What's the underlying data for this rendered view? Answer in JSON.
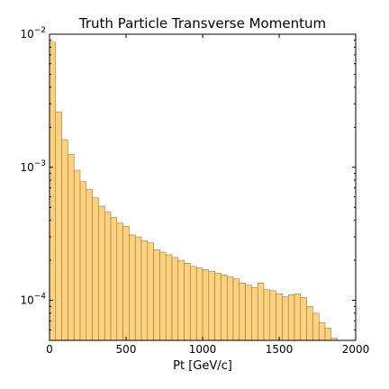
{
  "chart_data": {
    "type": "bar",
    "title": "Truth Particle Transverse Momentum",
    "xlabel": "Pt [GeV/c]",
    "ylabel": "",
    "xlim": [
      0,
      2000
    ],
    "ylim": [
      5e-05,
      0.01
    ],
    "yscale": "log",
    "bar_color": "#fdd17f",
    "edge_color": "#8a6a2a",
    "bin_width": 40,
    "x_ticks": [
      {
        "value": 0,
        "label": "0"
      },
      {
        "value": 500,
        "label": "500"
      },
      {
        "value": 1000,
        "label": "1000"
      },
      {
        "value": 1500,
        "label": "1500"
      },
      {
        "value": 2000,
        "label": "2000"
      }
    ],
    "y_ticks": [
      {
        "value": 0.0001,
        "base": "10",
        "exp": "−4"
      },
      {
        "value": 0.001,
        "base": "10",
        "exp": "−3"
      },
      {
        "value": 0.01,
        "base": "10",
        "exp": "−2"
      }
    ],
    "bin_edges_start": [
      0,
      40,
      80,
      120,
      160,
      200,
      240,
      280,
      320,
      360,
      400,
      440,
      480,
      520,
      560,
      600,
      640,
      680,
      720,
      760,
      800,
      840,
      880,
      920,
      960,
      1000,
      1040,
      1080,
      1120,
      1160,
      1200,
      1240,
      1280,
      1320,
      1360,
      1400,
      1440,
      1480,
      1520,
      1560,
      1600,
      1640,
      1680,
      1720,
      1760,
      1800,
      1840
    ],
    "values": [
      0.0087,
      0.0026,
      0.0016,
      0.00125,
      0.00095,
      0.00078,
      0.00068,
      0.00059,
      0.00051,
      0.00046,
      0.00042,
      0.00038,
      0.00036,
      0.00031,
      0.0003,
      0.00028,
      0.00027,
      0.00024,
      0.00023,
      0.00022,
      0.00021,
      0.0002,
      0.00019,
      0.00018,
      0.000175,
      0.00017,
      0.000165,
      0.00016,
      0.000155,
      0.00015,
      0.000145,
      0.000135,
      0.00013,
      0.000125,
      0.000135,
      0.00012,
      0.000118,
      0.000112,
      0.000106,
      0.00011,
      0.000112,
      0.000105,
      9e-05,
      8e-05,
      6.8e-05,
      6.2e-05,
      5.2e-05
    ]
  }
}
